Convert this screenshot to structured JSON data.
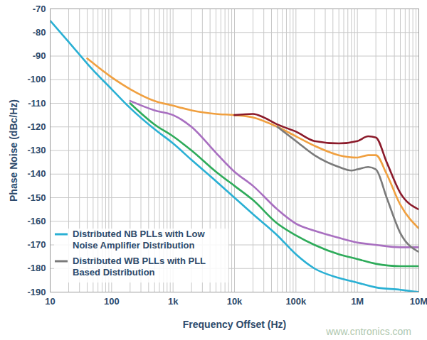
{
  "chart_data": {
    "type": "line",
    "x_label": "Frequency Offset (Hz)",
    "y_label": "Phase Noise (dBc/Hz)",
    "log": "x",
    "grid": true,
    "legend": "lower left",
    "xlim": [
      10,
      10000000
    ],
    "xticks": [
      10,
      100,
      {
        "value": 1000,
        "label": "1k"
      },
      {
        "value": 10000,
        "label": "10k"
      },
      {
        "value": 100000,
        "label": "100k"
      },
      {
        "value": 1000000,
        "label": "1M"
      },
      {
        "value": 10000000,
        "label": "10M"
      }
    ],
    "ylim": [
      -190,
      -70
    ],
    "yticks": [
      -190,
      -180,
      -170,
      -160,
      -150,
      -140,
      -130,
      -120,
      -110,
      -100,
      -90,
      -80,
      -70
    ],
    "annotations": [
      {
        "text": "www.cntronics.com"
      }
    ],
    "series": [
      {
        "name": "Distributed NB PLLs with Low Noise Amplifier Distribution",
        "color": "#2ab0d4",
        "x": [
          10,
          20,
          50,
          100,
          200,
          500,
          1000,
          2000,
          5000,
          10000,
          20000,
          50000,
          100000,
          200000,
          500000,
          1000000,
          2000000,
          5000000,
          10000000
        ],
        "values": [
          -75,
          -84,
          -96,
          -104,
          -112,
          -121,
          -127,
          -134,
          -143,
          -150,
          -157,
          -166,
          -174,
          -180,
          -184,
          -186,
          -188,
          -189,
          -190
        ]
      },
      {
        "name": null,
        "color": "#2eab5a",
        "x": [
          200,
          500,
          1000,
          2000,
          5000,
          10000,
          20000,
          50000,
          100000,
          200000,
          500000,
          1000000,
          2000000,
          5000000,
          10000000
        ],
        "values": [
          -110,
          -119,
          -124,
          -130,
          -139,
          -145,
          -151,
          -161,
          -166,
          -170,
          -174,
          -176,
          -178,
          -179,
          -179
        ]
      },
      {
        "name": null,
        "color": "#a86fc0",
        "x": [
          200,
          500,
          1000,
          2000,
          5000,
          10000,
          20000,
          50000,
          100000,
          200000,
          500000,
          1000000,
          2000000,
          5000000,
          10000000
        ],
        "values": [
          -109,
          -113,
          -115,
          -120,
          -131,
          -139,
          -145,
          -155,
          -161,
          -164,
          -167,
          -169,
          -170,
          -171,
          -171
        ]
      },
      {
        "name": null,
        "color": "#f0a040",
        "x": [
          40,
          100,
          200,
          500,
          1000,
          2000,
          5000,
          10000,
          20000,
          50000,
          100000,
          200000,
          500000,
          1000000,
          1500000,
          2000000,
          3000000,
          5000000,
          10000000
        ],
        "values": [
          -91,
          -99,
          -104,
          -109,
          -111,
          -113,
          -114.5,
          -115,
          -116,
          -120,
          -124,
          -128,
          -132,
          -133,
          -132,
          -132,
          -140,
          -153,
          -163
        ]
      },
      {
        "name": "Distributed WB PLLs with PLL Based Distribution",
        "color": "#7a7a7a",
        "x": [
          50000,
          100000,
          200000,
          500000,
          800000,
          1000000,
          1500000,
          2000000,
          3000000,
          5000000,
          10000000
        ],
        "values": [
          -120,
          -126,
          -132,
          -137,
          -138.5,
          -138,
          -137,
          -138,
          -150,
          -165,
          -173
        ]
      },
      {
        "name": null,
        "color": "#8b1a2a",
        "x": [
          10000,
          20000,
          30000,
          50000,
          100000,
          200000,
          500000,
          1000000,
          1500000,
          2000000,
          3000000,
          5000000,
          10000000
        ],
        "values": [
          -115,
          -114.5,
          -116,
          -119,
          -122,
          -126,
          -127,
          -126,
          -124,
          -124.5,
          -135,
          -148,
          -155
        ]
      }
    ]
  }
}
